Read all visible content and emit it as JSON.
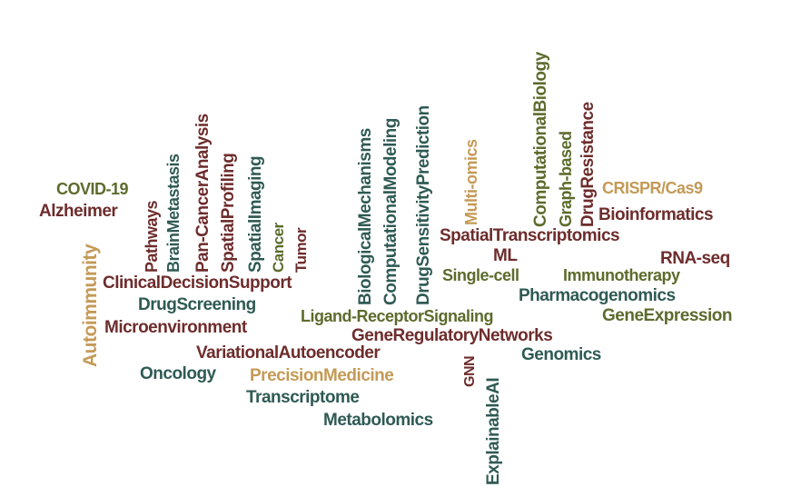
{
  "word_cloud": {
    "colors": {
      "dark_teal": "#2f5a54",
      "dark_red": "#6e2c2c",
      "olive": "#5c6b2c",
      "tan": "#c49a56",
      "background": "#ffffff"
    },
    "words": [
      "COVID-19",
      "Alzheimer",
      "Autoimmunity",
      "Pathways",
      "BrainMetastasis",
      "Pan-CancerAnalysis",
      "SpatialProfiling",
      "SpatialImaging",
      "Cancer",
      "Tumor",
      "ClinicalDecisionSupport",
      "DrugScreening",
      "Microenvironment",
      "VariationalAutoencoder",
      "Oncology",
      "PrecisionMedicine",
      "Transcriptome",
      "Metabolomics",
      "BiologicalMechanisms",
      "ComputationalModeling",
      "DrugSensitivityPrediction",
      "Ligand-ReceptorSignaling",
      "GeneRegulatoryNetworks",
      "GNN",
      "ExplainableAI",
      "Multi-omics",
      "ComputationalBiology",
      "Graph-based",
      "DrugResistance",
      "CRISPR/Cas9",
      "Bioinformatics",
      "SpatialTranscriptomics",
      "ML",
      "RNA-seq",
      "Single-cell",
      "Immunotherapy",
      "Pharmacogenomics",
      "GeneExpression",
      "Genomics"
    ]
  }
}
